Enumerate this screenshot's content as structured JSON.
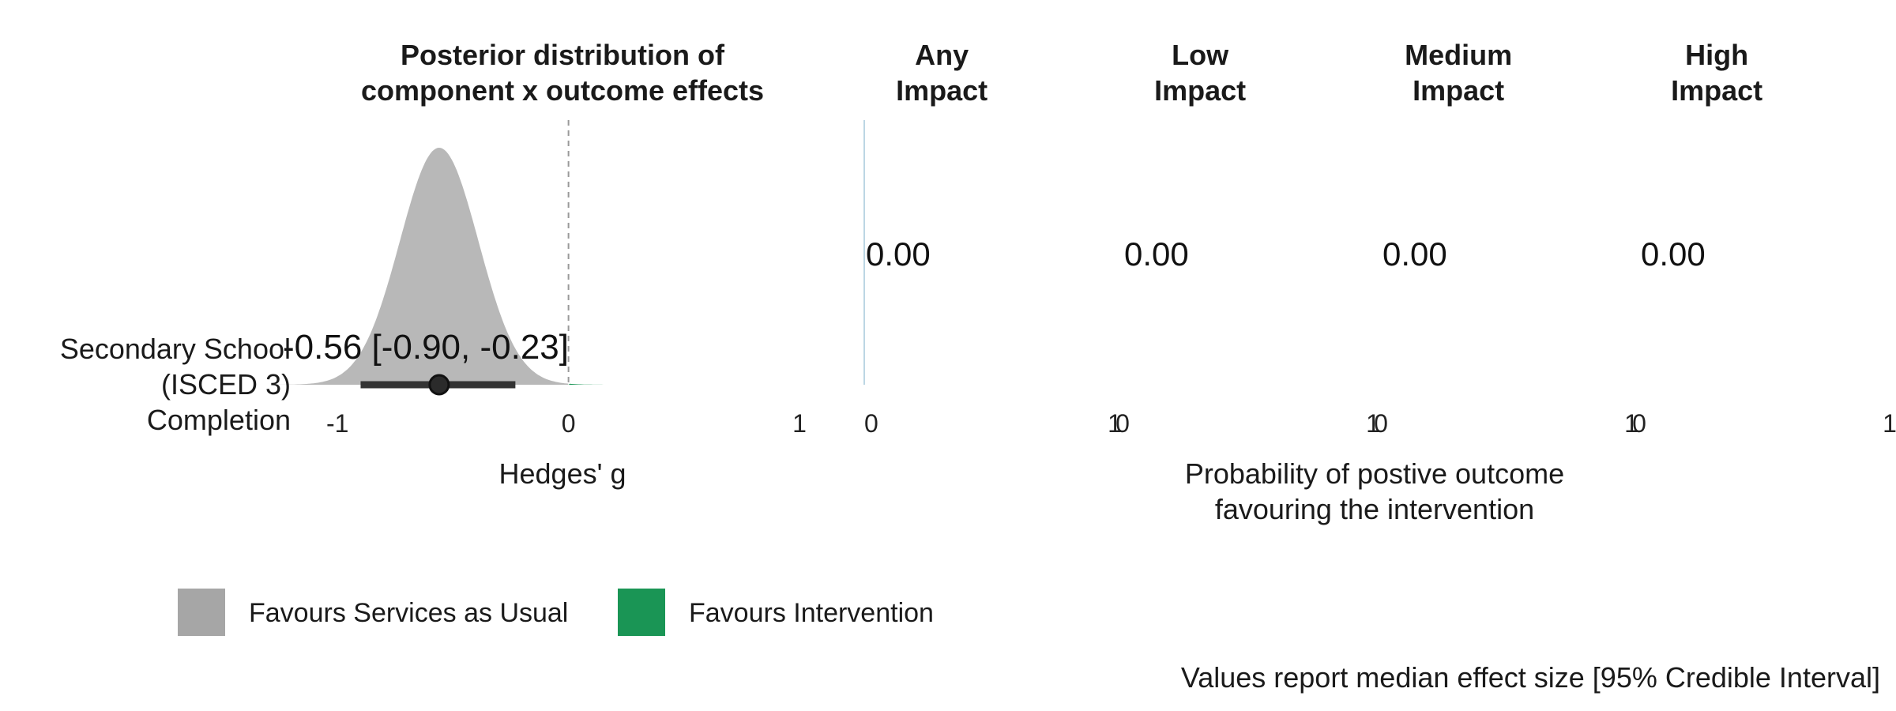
{
  "chart_data": {
    "type": "density",
    "left_panel": {
      "title_lines": [
        "Posterior distribution of",
        "component x outcome effects"
      ],
      "xlabel": "Hedges' g",
      "xlim": [
        -1.1,
        1.0
      ],
      "ticks": [
        -1,
        0,
        1
      ],
      "tick_labels": [
        "-1",
        "0",
        "1"
      ],
      "reference_line": 0,
      "row": {
        "label_lines": [
          "Secondary School",
          "(ISCED 3)",
          "Completion"
        ],
        "median": -0.56,
        "ci_low": -0.9,
        "ci_high": -0.23,
        "sd": 0.17,
        "annotation": "-0.56 [-0.90, -0.23]"
      }
    },
    "probability_panels": {
      "xlabel_lines": [
        "Probability of postive outcome",
        "favouring the intervention"
      ],
      "panels": [
        {
          "title_lines": [
            "Any",
            "Impact"
          ],
          "value": 0.0,
          "value_label": "0.00",
          "tick_labels": [
            "0",
            "1"
          ]
        },
        {
          "title_lines": [
            "Low",
            "Impact"
          ],
          "value": 0.0,
          "value_label": "0.00",
          "tick_labels": [
            "0",
            "1"
          ]
        },
        {
          "title_lines": [
            "Medium",
            "Impact"
          ],
          "value": 0.0,
          "value_label": "0.00",
          "tick_labels": [
            "0",
            "1"
          ]
        },
        {
          "title_lines": [
            "High",
            "Impact"
          ],
          "value": 0.0,
          "value_label": "0.00",
          "tick_labels": [
            "0",
            "1"
          ]
        }
      ]
    },
    "legend": [
      {
        "label": "Favours Services as Usual",
        "color": "#a6a6a6"
      },
      {
        "label": "Favours Intervention",
        "color": "#1a9555"
      }
    ],
    "caption": "Values report median effect size [95% Credible Interval]",
    "grid": false,
    "legend_position": "bottom-left"
  }
}
